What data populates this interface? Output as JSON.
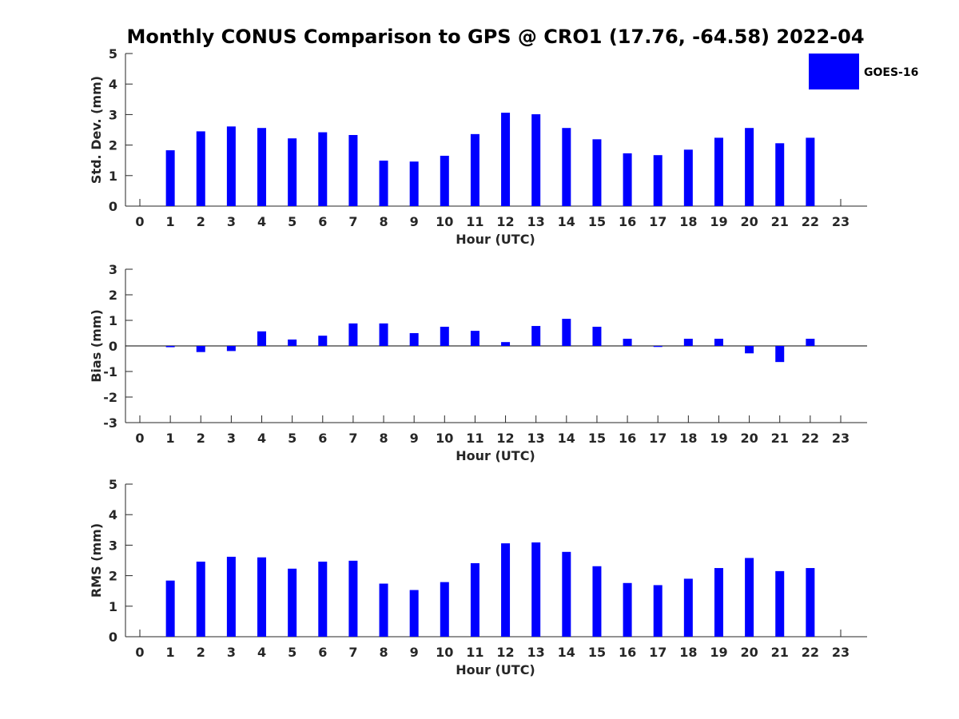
{
  "title": "Monthly CONUS Comparison to GPS @ CRO1 (17.76, -64.58) 2022-04",
  "legend": {
    "label": "GOES-16",
    "color": "#0000ff"
  },
  "chart_data": [
    {
      "type": "bar",
      "ylabel": "Std. Dev. (mm)",
      "xlabel": "Hour (UTC)",
      "ylim": [
        0,
        5
      ],
      "yticks": [
        "0",
        "1",
        "2",
        "3",
        "4",
        "5"
      ],
      "categories": [
        "0",
        "1",
        "2",
        "3",
        "4",
        "5",
        "6",
        "7",
        "8",
        "9",
        "10",
        "11",
        "12",
        "13",
        "14",
        "15",
        "16",
        "17",
        "18",
        "19",
        "20",
        "21",
        "22",
        "23"
      ],
      "series": [
        {
          "name": "GOES-16",
          "values": [
            null,
            1.83,
            2.45,
            2.61,
            2.56,
            2.22,
            2.42,
            2.33,
            1.49,
            1.46,
            1.65,
            2.36,
            3.06,
            3.01,
            2.56,
            2.19,
            1.73,
            1.67,
            1.85,
            2.24,
            2.56,
            2.06,
            2.24,
            null
          ]
        }
      ]
    },
    {
      "type": "bar",
      "ylabel": "Bias (mm)",
      "xlabel": "Hour (UTC)",
      "ylim": [
        -3,
        3
      ],
      "yticks": [
        "-3",
        "-2",
        "-1",
        "0",
        "1",
        "2",
        "3"
      ],
      "categories": [
        "0",
        "1",
        "2",
        "3",
        "4",
        "5",
        "6",
        "7",
        "8",
        "9",
        "10",
        "11",
        "12",
        "13",
        "14",
        "15",
        "16",
        "17",
        "18",
        "19",
        "20",
        "21",
        "22",
        "23"
      ],
      "series": [
        {
          "name": "GOES-16",
          "values": [
            null,
            -0.05,
            -0.24,
            -0.2,
            0.57,
            0.25,
            0.4,
            0.88,
            0.88,
            0.5,
            0.75,
            0.59,
            0.15,
            0.78,
            1.06,
            0.75,
            0.28,
            -0.04,
            0.28,
            0.28,
            -0.29,
            -0.63,
            0.28,
            null
          ]
        }
      ]
    },
    {
      "type": "bar",
      "ylabel": "RMS (mm)",
      "xlabel": "Hour (UTC)",
      "ylim": [
        0,
        5
      ],
      "yticks": [
        "0",
        "1",
        "2",
        "3",
        "4",
        "5"
      ],
      "categories": [
        "0",
        "1",
        "2",
        "3",
        "4",
        "5",
        "6",
        "7",
        "8",
        "9",
        "10",
        "11",
        "12",
        "13",
        "14",
        "15",
        "16",
        "17",
        "18",
        "19",
        "20",
        "21",
        "22",
        "23"
      ],
      "series": [
        {
          "name": "GOES-16",
          "values": [
            null,
            1.84,
            2.46,
            2.62,
            2.6,
            2.23,
            2.46,
            2.49,
            1.74,
            1.53,
            1.79,
            2.41,
            3.06,
            3.09,
            2.78,
            2.31,
            1.76,
            1.69,
            1.9,
            2.25,
            2.58,
            2.15,
            2.25,
            null
          ]
        }
      ]
    }
  ]
}
